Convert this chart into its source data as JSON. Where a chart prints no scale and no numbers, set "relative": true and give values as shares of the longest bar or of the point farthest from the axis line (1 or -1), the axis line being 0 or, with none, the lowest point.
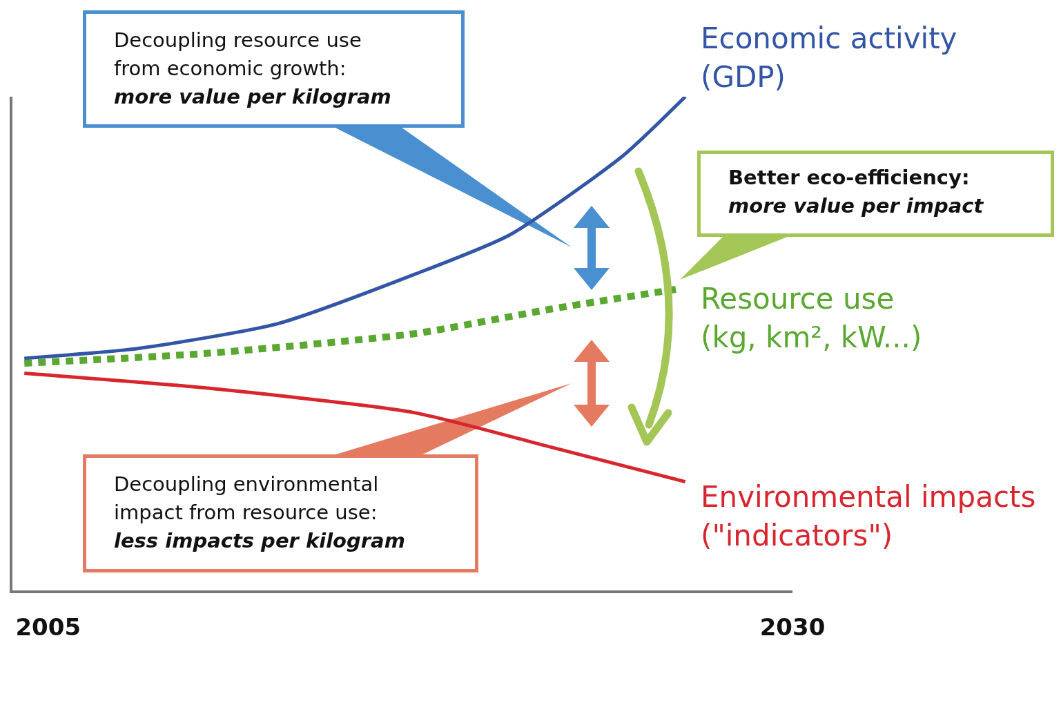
{
  "chart_data": {
    "type": "line",
    "relative": true,
    "xlim": [
      2003.8,
      2030
    ],
    "xticks": [
      2005,
      2030
    ],
    "series": [
      {
        "name": "Economic activity (GDP)",
        "color": "#3355a5",
        "x": [
          2004.2,
          2008.0,
          2012.7,
          2017.3,
          2020.5,
          2024.3,
          2026.4
        ],
        "values": [
          0.47,
          0.49,
          0.54,
          0.64,
          0.72,
          0.88,
          1.0
        ]
      },
      {
        "name": "Resource use (kg, km², kW...)",
        "color": "#5aa832",
        "line_style": "dotted",
        "x": [
          2004.2,
          2010.3,
          2017.3,
          2021.9,
          2026.1
        ],
        "values": [
          0.46,
          0.48,
          0.52,
          0.57,
          0.61
        ]
      },
      {
        "name": "Environmental impacts (\"indicators\")",
        "color": "#d8262f",
        "x": [
          2004.2,
          2010.3,
          2017.3,
          2021.9,
          2026.4
        ],
        "values": [
          0.44,
          0.41,
          0.36,
          0.29,
          0.22
        ]
      }
    ],
    "annotations": [
      "Decoupling resource use from economic growth:",
      "more value per kilogram",
      "Better eco-efficiency:",
      "more value per impact",
      "Decoupling environmental impact from resource use:",
      "less impacts per kilogram"
    ]
  }
}
